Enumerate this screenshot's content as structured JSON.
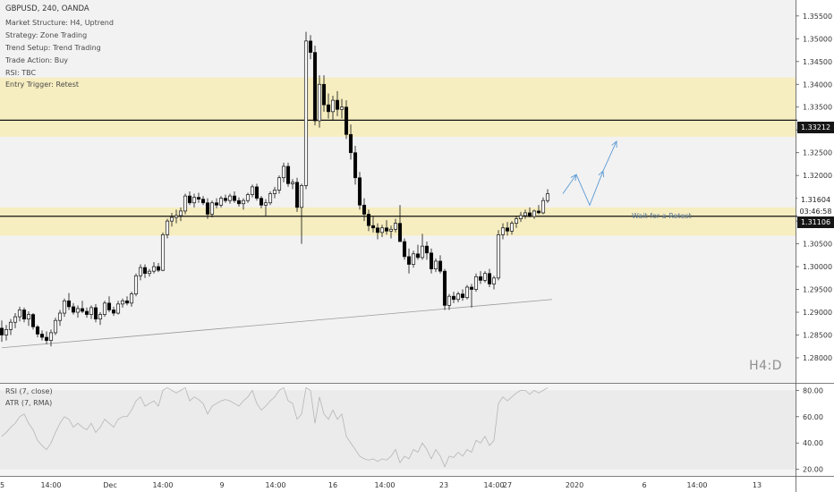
{
  "header": {
    "symbol": "GBPUSD, 240, OANDA",
    "lines": [
      "Market Structure: H4, Uptrend",
      "Strategy: Zone Trading",
      "Trend Setup: Trend Trading",
      "Trade Action: Buy",
      "RSI: TBC",
      "Entry Trigger: Retest"
    ]
  },
  "watermark": "H4:D",
  "annotation": "Wait for a Retest",
  "price_tags": {
    "upper_line": "1.33212",
    "current": "1.31604",
    "countdown": "03:46:58",
    "lower_line": "1.31106"
  },
  "indicators": {
    "rsi_label": "RSI (7, close)",
    "atr_label": "ATR (7, RMA)"
  },
  "colors": {
    "zone": "#f6edc0",
    "bull_candle": "#ffffff",
    "bear_candle": "#000000",
    "arrow": "#5b9bd5",
    "background": "#f2f2f2"
  },
  "chart_data": {
    "type": "candlestick",
    "symbol": "GBPUSD",
    "timeframe": "240",
    "y_range": [
      1.2745,
      1.3585
    ],
    "y_ticks": [
      "1.35500",
      "1.35000",
      "1.34500",
      "1.34000",
      "1.33500",
      "1.33000",
      "1.32500",
      "1.32000",
      "1.31500",
      "1.31000",
      "1.30500",
      "1.30000",
      "1.29500",
      "1.29000",
      "1.28500",
      "1.28000"
    ],
    "y_tick_values": [
      1.355,
      1.35,
      1.345,
      1.34,
      1.335,
      1.33,
      1.325,
      1.32,
      1.315,
      1.31,
      1.305,
      1.3,
      1.295,
      1.29,
      1.285,
      1.28
    ],
    "x_ticks": [
      "5",
      "14:00",
      "Dec",
      "14:00",
      "9",
      "14:00",
      "16",
      "14:00",
      "23",
      "14:00",
      "27",
      "2020",
      "6",
      "14:00",
      "13"
    ],
    "zones": [
      {
        "top": 1.3415,
        "bottom": 1.3285
      },
      {
        "top": 1.313,
        "bottom": 1.3068
      }
    ],
    "horizontal_lines": [
      1.33212,
      1.31106
    ],
    "trendline": [
      [
        0,
        1.2822
      ],
      [
        123,
        1.2928
      ]
    ],
    "candles_ohlc": [
      [
        1.2865,
        1.2882,
        1.2835,
        1.285
      ],
      [
        1.285,
        1.2872,
        1.2838,
        1.2862
      ],
      [
        1.2862,
        1.2885,
        1.285,
        1.2878
      ],
      [
        1.2878,
        1.2898,
        1.2865,
        1.289
      ],
      [
        1.289,
        1.2912,
        1.288,
        1.2905
      ],
      [
        1.2905,
        1.291,
        1.2878,
        1.2885
      ],
      [
        1.2885,
        1.2902,
        1.287,
        1.2895
      ],
      [
        1.2895,
        1.2898,
        1.2862,
        1.2868
      ],
      [
        1.2868,
        1.2872,
        1.2845,
        1.2852
      ],
      [
        1.2852,
        1.286,
        1.2838,
        1.2845
      ],
      [
        1.2845,
        1.2858,
        1.283,
        1.2838
      ],
      [
        1.2838,
        1.2862,
        1.2825,
        1.2855
      ],
      [
        1.2855,
        1.2888,
        1.285,
        1.2882
      ],
      [
        1.2882,
        1.2905,
        1.287,
        1.2898
      ],
      [
        1.2898,
        1.293,
        1.289,
        1.2925
      ],
      [
        1.2925,
        1.2942,
        1.2905,
        1.2912
      ],
      [
        1.2912,
        1.292,
        1.2895,
        1.29
      ],
      [
        1.29,
        1.2915,
        1.2888,
        1.2908
      ],
      [
        1.2908,
        1.2925,
        1.2898,
        1.2902
      ],
      [
        1.2902,
        1.291,
        1.2888,
        1.2895
      ],
      [
        1.2895,
        1.2915,
        1.2885,
        1.291
      ],
      [
        1.291,
        1.2918,
        1.2878,
        1.2885
      ],
      [
        1.2885,
        1.29,
        1.2872,
        1.2895
      ],
      [
        1.2895,
        1.2925,
        1.289,
        1.292
      ],
      [
        1.292,
        1.2935,
        1.29,
        1.2905
      ],
      [
        1.2905,
        1.2912,
        1.2892,
        1.2898
      ],
      [
        1.2898,
        1.2925,
        1.2895,
        1.2918
      ],
      [
        1.2918,
        1.293,
        1.291,
        1.2925
      ],
      [
        1.2925,
        1.2935,
        1.2915,
        1.292
      ],
      [
        1.292,
        1.2945,
        1.2912,
        1.294
      ],
      [
        1.294,
        1.2985,
        1.2935,
        1.298
      ],
      [
        1.298,
        1.3005,
        1.297,
        1.2998
      ],
      [
        1.2998,
        1.3005,
        1.2975,
        1.2985
      ],
      [
        1.2985,
        1.2995,
        1.2978,
        1.299
      ],
      [
        1.299,
        1.301,
        1.2985,
        1.3
      ],
      [
        1.3,
        1.3008,
        1.2988,
        1.2992
      ],
      [
        1.2992,
        1.3075,
        1.299,
        1.307
      ],
      [
        1.307,
        1.3105,
        1.3062,
        1.31
      ],
      [
        1.31,
        1.3118,
        1.3088,
        1.3108
      ],
      [
        1.3108,
        1.3125,
        1.3095,
        1.3112
      ],
      [
        1.3112,
        1.313,
        1.31,
        1.3122
      ],
      [
        1.3122,
        1.316,
        1.3115,
        1.3155
      ],
      [
        1.3155,
        1.3165,
        1.3135,
        1.314
      ],
      [
        1.314,
        1.316,
        1.313,
        1.3152
      ],
      [
        1.3152,
        1.3162,
        1.314,
        1.3148
      ],
      [
        1.3148,
        1.3155,
        1.3135,
        1.314
      ],
      [
        1.314,
        1.315,
        1.3105,
        1.3115
      ],
      [
        1.3115,
        1.3145,
        1.3108,
        1.314
      ],
      [
        1.314,
        1.315,
        1.3128,
        1.3135
      ],
      [
        1.3135,
        1.3155,
        1.313,
        1.315
      ],
      [
        1.315,
        1.3158,
        1.314,
        1.3145
      ],
      [
        1.3145,
        1.316,
        1.3138,
        1.3155
      ],
      [
        1.3155,
        1.3165,
        1.314,
        1.3145
      ],
      [
        1.3145,
        1.3152,
        1.3132,
        1.3138
      ],
      [
        1.3138,
        1.315,
        1.3125,
        1.3145
      ],
      [
        1.3145,
        1.3162,
        1.314,
        1.3158
      ],
      [
        1.3158,
        1.318,
        1.3152,
        1.3175
      ],
      [
        1.3175,
        1.3182,
        1.3145,
        1.315
      ],
      [
        1.315,
        1.3155,
        1.3128,
        1.3135
      ],
      [
        1.3135,
        1.3148,
        1.311,
        1.314
      ],
      [
        1.314,
        1.3165,
        1.3135,
        1.316
      ],
      [
        1.316,
        1.3175,
        1.315,
        1.3168
      ],
      [
        1.3168,
        1.32,
        1.316,
        1.3195
      ],
      [
        1.3195,
        1.3228,
        1.3185,
        1.322
      ],
      [
        1.322,
        1.3228,
        1.3175,
        1.3182
      ],
      [
        1.3182,
        1.3192,
        1.317,
        1.3185
      ],
      [
        1.3185,
        1.3195,
        1.312,
        1.313
      ],
      [
        1.313,
        1.3182,
        1.305,
        1.3178
      ],
      [
        1.3178,
        1.3515,
        1.317,
        1.3495
      ],
      [
        1.3495,
        1.3508,
        1.3455,
        1.347
      ],
      [
        1.347,
        1.3485,
        1.331,
        1.332
      ],
      [
        1.332,
        1.342,
        1.3305,
        1.34
      ],
      [
        1.34,
        1.342,
        1.334,
        1.3355
      ],
      [
        1.3355,
        1.338,
        1.3325,
        1.334
      ],
      [
        1.334,
        1.3375,
        1.332,
        1.3365
      ],
      [
        1.3365,
        1.3385,
        1.333,
        1.3345
      ],
      [
        1.3345,
        1.3368,
        1.3325,
        1.335
      ],
      [
        1.335,
        1.3365,
        1.328,
        1.329
      ],
      [
        1.329,
        1.3312,
        1.3235,
        1.325
      ],
      [
        1.325,
        1.3265,
        1.318,
        1.3195
      ],
      [
        1.3195,
        1.3208,
        1.3125,
        1.3135
      ],
      [
        1.3135,
        1.315,
        1.31,
        1.3115
      ],
      [
        1.3115,
        1.3125,
        1.3078,
        1.309
      ],
      [
        1.309,
        1.311,
        1.3075,
        1.3085
      ],
      [
        1.3085,
        1.3095,
        1.306,
        1.3075
      ],
      [
        1.3075,
        1.3092,
        1.3065,
        1.3085
      ],
      [
        1.3085,
        1.3102,
        1.307,
        1.3078
      ],
      [
        1.3078,
        1.309,
        1.3062,
        1.3082
      ],
      [
        1.3082,
        1.3105,
        1.3075,
        1.3095
      ],
      [
        1.3095,
        1.3135,
        1.3085,
        1.3055
      ],
      [
        1.3055,
        1.3062,
        1.3015,
        1.3022
      ],
      [
        1.3022,
        1.304,
        1.2985,
        1.3005
      ],
      [
        1.3005,
        1.3035,
        1.2998,
        1.3028
      ],
      [
        1.3028,
        1.3048,
        1.3015,
        1.302
      ],
      [
        1.302,
        1.3072,
        1.3015,
        1.3045
      ],
      [
        1.3045,
        1.3055,
        1.3015,
        1.303
      ],
      [
        1.303,
        1.304,
        1.2985,
        1.2995
      ],
      [
        1.2995,
        1.3018,
        1.2988,
        1.3012
      ],
      [
        1.3012,
        1.3025,
        1.2985,
        1.299
      ],
      [
        1.299,
        1.2995,
        1.2905,
        1.2915
      ],
      [
        1.2915,
        1.294,
        1.2905,
        1.2935
      ],
      [
        1.2935,
        1.2945,
        1.292,
        1.2928
      ],
      [
        1.2928,
        1.2945,
        1.2922,
        1.294
      ],
      [
        1.294,
        1.295,
        1.2925,
        1.2932
      ],
      [
        1.2932,
        1.296,
        1.2928,
        1.2955
      ],
      [
        1.2955,
        1.2962,
        1.291,
        1.295
      ],
      [
        1.295,
        1.2985,
        1.2945,
        1.2978
      ],
      [
        1.2978,
        1.299,
        1.2962,
        1.297
      ],
      [
        1.297,
        1.299,
        1.2965,
        1.2985
      ],
      [
        1.2985,
        1.2995,
        1.2955,
        1.2962
      ],
      [
        1.2962,
        1.298,
        1.295,
        1.2975
      ],
      [
        1.2975,
        1.308,
        1.297,
        1.307
      ],
      [
        1.307,
        1.3095,
        1.306,
        1.3085
      ],
      [
        1.3085,
        1.3098,
        1.3068,
        1.3078
      ],
      [
        1.3078,
        1.31,
        1.307,
        1.3095
      ],
      [
        1.3095,
        1.3112,
        1.3085,
        1.3105
      ],
      [
        1.3105,
        1.312,
        1.3098,
        1.3112
      ],
      [
        1.3112,
        1.3125,
        1.3105,
        1.3118
      ],
      [
        1.3118,
        1.313,
        1.3108,
        1.311
      ],
      [
        1.311,
        1.3125,
        1.3105,
        1.3122
      ],
      [
        1.3122,
        1.3135,
        1.3115,
        1.3118
      ],
      [
        1.3118,
        1.3152,
        1.3115,
        1.3145
      ],
      [
        1.3145,
        1.317,
        1.314,
        1.316
      ]
    ],
    "projection_path": [
      [
        123,
        1.316
      ],
      [
        126,
        1.3202
      ],
      [
        129,
        1.3135
      ],
      [
        132,
        1.321
      ],
      [
        135,
        1.3275
      ]
    ],
    "rsi": {
      "y_ticks": [
        "80.00",
        "60.00",
        "40.00",
        "20.00"
      ],
      "y_tick_values": [
        80,
        60,
        40,
        20
      ],
      "range": [
        15,
        85
      ]
    },
    "rsi_values": [
      45,
      48,
      52,
      55,
      60,
      62,
      55,
      50,
      42,
      38,
      35,
      40,
      48,
      55,
      60,
      58,
      52,
      55,
      52,
      50,
      55,
      48,
      52,
      58,
      55,
      52,
      58,
      60,
      60,
      65,
      72,
      75,
      68,
      70,
      72,
      68,
      80,
      82,
      80,
      78,
      80,
      82,
      72,
      75,
      73,
      70,
      62,
      68,
      70,
      72,
      73,
      72,
      70,
      68,
      72,
      75,
      80,
      70,
      65,
      68,
      72,
      75,
      80,
      82,
      72,
      70,
      58,
      62,
      82,
      80,
      55,
      75,
      62,
      58,
      65,
      58,
      62,
      45,
      40,
      35,
      30,
      28,
      27,
      28,
      26,
      28,
      27,
      30,
      35,
      25,
      30,
      28,
      35,
      33,
      40,
      35,
      28,
      35,
      30,
      22,
      30,
      29,
      33,
      30,
      35,
      33,
      42,
      40,
      45,
      38,
      42,
      70,
      75,
      72,
      75,
      78,
      80,
      80,
      77,
      80,
      78,
      80,
      82
    ]
  }
}
